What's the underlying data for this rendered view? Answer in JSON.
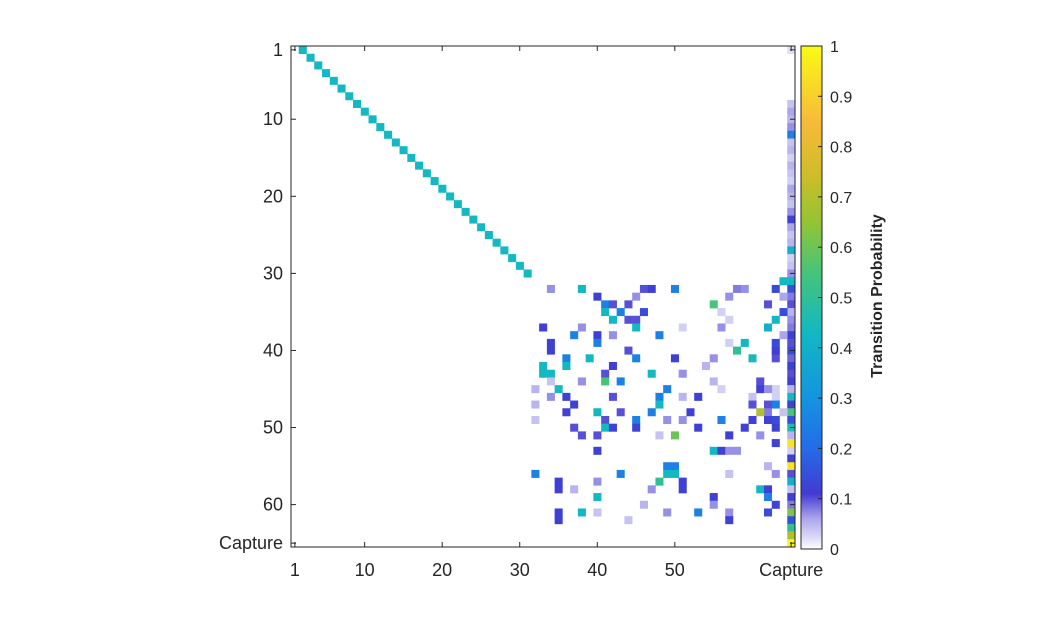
{
  "chart_data": {
    "type": "heatmap",
    "title": "",
    "n_states": 65,
    "x_tick_labels": [
      "1",
      "10",
      "20",
      "30",
      "40",
      "50",
      "Capture"
    ],
    "x_tick_positions": [
      1,
      10,
      20,
      30,
      40,
      50,
      65
    ],
    "y_tick_labels": [
      "1",
      "10",
      "20",
      "30",
      "40",
      "50",
      "60",
      "Capture"
    ],
    "y_tick_positions": [
      1,
      10,
      20,
      30,
      40,
      50,
      60,
      65
    ],
    "colorbar": {
      "label": "Transition Probability",
      "ticks": [
        "0",
        "0.1",
        "0.2",
        "0.3",
        "0.4",
        "0.5",
        "0.6",
        "0.7",
        "0.8",
        "0.9",
        "1"
      ],
      "range": [
        0,
        1
      ]
    },
    "cells": [
      [
        1,
        2,
        0.43
      ],
      [
        2,
        3,
        0.43
      ],
      [
        3,
        4,
        0.43
      ],
      [
        4,
        5,
        0.43
      ],
      [
        5,
        6,
        0.43
      ],
      [
        6,
        7,
        0.43
      ],
      [
        7,
        8,
        0.43
      ],
      [
        8,
        9,
        0.43
      ],
      [
        9,
        10,
        0.43
      ],
      [
        10,
        11,
        0.43
      ],
      [
        11,
        12,
        0.43
      ],
      [
        12,
        13,
        0.43
      ],
      [
        13,
        14,
        0.43
      ],
      [
        14,
        15,
        0.43
      ],
      [
        15,
        16,
        0.43
      ],
      [
        16,
        17,
        0.43
      ],
      [
        17,
        18,
        0.43
      ],
      [
        18,
        19,
        0.43
      ],
      [
        19,
        20,
        0.43
      ],
      [
        20,
        21,
        0.43
      ],
      [
        21,
        22,
        0.43
      ],
      [
        22,
        23,
        0.43
      ],
      [
        23,
        24,
        0.43
      ],
      [
        24,
        25,
        0.43
      ],
      [
        25,
        26,
        0.43
      ],
      [
        26,
        27,
        0.43
      ],
      [
        27,
        28,
        0.43
      ],
      [
        28,
        29,
        0.43
      ],
      [
        29,
        30,
        0.43
      ],
      [
        30,
        31,
        0.43
      ],
      [
        1,
        65,
        0.02
      ],
      [
        8,
        65,
        0.04
      ],
      [
        9,
        65,
        0.06
      ],
      [
        10,
        65,
        0.05
      ],
      [
        11,
        65,
        0.07
      ],
      [
        12,
        65,
        0.25
      ],
      [
        13,
        65,
        0.04
      ],
      [
        14,
        65,
        0.05
      ],
      [
        15,
        65,
        0.03
      ],
      [
        16,
        65,
        0.05
      ],
      [
        17,
        65,
        0.04
      ],
      [
        18,
        65,
        0.03
      ],
      [
        19,
        65,
        0.06
      ],
      [
        20,
        65,
        0.05
      ],
      [
        21,
        65,
        0.04
      ],
      [
        22,
        65,
        0.07
      ],
      [
        23,
        65,
        0.12
      ],
      [
        24,
        65,
        0.06
      ],
      [
        25,
        65,
        0.04
      ],
      [
        26,
        65,
        0.05
      ],
      [
        27,
        65,
        0.4
      ],
      [
        28,
        65,
        0.03
      ],
      [
        29,
        65,
        0.04
      ],
      [
        30,
        65,
        0.07
      ],
      [
        31,
        65,
        0.43
      ],
      [
        32,
        65,
        0.15
      ],
      [
        33,
        65,
        0.08
      ],
      [
        34,
        65,
        0.1
      ],
      [
        35,
        65,
        0.05
      ],
      [
        36,
        65,
        0.07
      ],
      [
        37,
        65,
        0.08
      ],
      [
        38,
        65,
        0.12
      ],
      [
        39,
        65,
        0.1
      ],
      [
        40,
        65,
        0.14
      ],
      [
        41,
        65,
        0.09
      ],
      [
        42,
        65,
        0.12
      ],
      [
        43,
        65,
        0.1
      ],
      [
        44,
        65,
        0.12
      ],
      [
        45,
        65,
        0.05
      ],
      [
        46,
        65,
        0.43
      ],
      [
        47,
        65,
        0.12
      ],
      [
        48,
        65,
        0.55
      ],
      [
        49,
        65,
        0.15
      ],
      [
        50,
        65,
        0.45
      ],
      [
        51,
        65,
        0.05
      ],
      [
        52,
        65,
        0.95
      ],
      [
        53,
        65,
        0.03
      ],
      [
        54,
        65,
        0.12
      ],
      [
        55,
        65,
        0.95
      ],
      [
        56,
        65,
        0.1
      ],
      [
        57,
        65,
        0.4
      ],
      [
        58,
        65,
        0.04
      ],
      [
        59,
        65,
        0.12
      ],
      [
        60,
        65,
        0.08
      ],
      [
        61,
        65,
        0.62
      ],
      [
        62,
        65,
        0.15
      ],
      [
        63,
        65,
        0.5
      ],
      [
        64,
        65,
        0.7
      ],
      [
        65,
        65,
        1.0
      ],
      [
        31,
        64,
        0.43
      ],
      [
        32,
        63,
        0.14
      ],
      [
        32,
        59,
        0.07
      ],
      [
        32,
        58,
        0.08
      ],
      [
        33,
        57,
        0.07
      ],
      [
        33,
        64,
        0.06
      ],
      [
        34,
        62,
        0.1
      ],
      [
        35,
        64,
        0.14
      ],
      [
        36,
        63,
        0.43
      ],
      [
        37,
        62,
        0.45
      ],
      [
        38,
        64,
        0.06
      ],
      [
        39,
        63,
        0.14
      ],
      [
        40,
        63,
        0.07
      ],
      [
        41,
        63,
        0.1
      ],
      [
        41,
        60,
        0.45
      ],
      [
        44,
        61,
        0.1
      ],
      [
        45,
        63,
        0.03
      ],
      [
        46,
        63,
        0.03
      ],
      [
        47,
        63,
        0.25
      ],
      [
        47,
        62,
        0.1
      ],
      [
        48,
        62,
        0.08
      ],
      [
        48,
        64,
        0.04
      ],
      [
        32,
        34,
        0.07
      ],
      [
        32,
        38,
        0.43
      ],
      [
        32,
        46,
        0.1
      ],
      [
        32,
        47,
        0.12
      ],
      [
        32,
        50,
        0.25
      ],
      [
        33,
        40,
        0.12
      ],
      [
        33,
        45,
        0.07
      ],
      [
        34,
        41,
        0.25
      ],
      [
        34,
        42,
        0.1
      ],
      [
        34,
        44,
        0.1
      ],
      [
        34,
        55,
        0.55
      ],
      [
        35,
        41,
        0.43
      ],
      [
        35,
        43,
        0.25
      ],
      [
        35,
        46,
        0.14
      ],
      [
        35,
        56,
        0.03
      ],
      [
        36,
        42,
        0.43
      ],
      [
        36,
        44,
        0.1
      ],
      [
        36,
        45,
        0.1
      ],
      [
        36,
        57,
        0.03
      ],
      [
        37,
        33,
        0.12
      ],
      [
        37,
        38,
        0.07
      ],
      [
        37,
        45,
        0.43
      ],
      [
        37,
        51,
        0.03
      ],
      [
        37,
        56,
        0.07
      ],
      [
        37,
        62,
        0.4
      ],
      [
        38,
        37,
        0.25
      ],
      [
        38,
        40,
        0.12
      ],
      [
        38,
        42,
        0.07
      ],
      [
        38,
        48,
        0.25
      ],
      [
        39,
        34,
        0.12
      ],
      [
        39,
        40,
        0.25
      ],
      [
        39,
        57,
        0.03
      ],
      [
        39,
        59,
        0.43
      ],
      [
        40,
        34,
        0.12
      ],
      [
        40,
        44,
        0.1
      ],
      [
        40,
        58,
        0.5
      ],
      [
        40,
        63,
        0.12
      ],
      [
        41,
        36,
        0.25
      ],
      [
        41,
        39,
        0.43
      ],
      [
        41,
        45,
        0.25
      ],
      [
        41,
        50,
        0.12
      ],
      [
        41,
        55,
        0.07
      ],
      [
        42,
        33,
        0.43
      ],
      [
        42,
        36,
        0.43
      ],
      [
        42,
        42,
        0.12
      ],
      [
        42,
        54,
        0.05
      ],
      [
        43,
        33,
        0.43
      ],
      [
        43,
        34,
        0.43
      ],
      [
        43,
        41,
        0.1
      ],
      [
        43,
        47,
        0.43
      ],
      [
        43,
        51,
        0.07
      ],
      [
        44,
        34,
        0.04
      ],
      [
        44,
        38,
        0.07
      ],
      [
        44,
        41,
        0.55
      ],
      [
        44,
        43,
        0.25
      ],
      [
        44,
        55,
        0.05
      ],
      [
        45,
        32,
        0.05
      ],
      [
        45,
        35,
        0.43
      ],
      [
        45,
        49,
        0.25
      ],
      [
        45,
        56,
        0.03
      ],
      [
        45,
        61,
        0.12
      ],
      [
        45,
        62,
        0.07
      ],
      [
        46,
        34,
        0.07
      ],
      [
        46,
        36,
        0.12
      ],
      [
        46,
        42,
        0.1
      ],
      [
        46,
        48,
        0.25
      ],
      [
        46,
        51,
        0.05
      ],
      [
        46,
        53,
        0.12
      ],
      [
        46,
        60,
        0.04
      ],
      [
        47,
        32,
        0.05
      ],
      [
        47,
        37,
        0.12
      ],
      [
        47,
        48,
        0.43
      ],
      [
        47,
        60,
        0.1
      ],
      [
        48,
        36,
        0.12
      ],
      [
        48,
        40,
        0.43
      ],
      [
        48,
        43,
        0.1
      ],
      [
        48,
        47,
        0.25
      ],
      [
        48,
        52,
        0.12
      ],
      [
        48,
        61,
        0.7
      ],
      [
        49,
        32,
        0.04
      ],
      [
        49,
        41,
        0.1
      ],
      [
        49,
        45,
        0.25
      ],
      [
        49,
        49,
        0.07
      ],
      [
        49,
        51,
        0.07
      ],
      [
        49,
        56,
        0.25
      ],
      [
        49,
        60,
        0.12
      ],
      [
        49,
        62,
        0.12
      ],
      [
        49,
        63,
        0.14
      ],
      [
        50,
        37,
        0.1
      ],
      [
        50,
        41,
        0.43
      ],
      [
        50,
        42,
        0.12
      ],
      [
        50,
        45,
        0.12
      ],
      [
        50,
        53,
        0.12
      ],
      [
        50,
        59,
        0.12
      ],
      [
        50,
        63,
        0.12
      ],
      [
        51,
        38,
        0.1
      ],
      [
        51,
        40,
        0.1
      ],
      [
        51,
        48,
        0.04
      ],
      [
        51,
        50,
        0.6
      ],
      [
        51,
        57,
        0.12
      ],
      [
        51,
        61,
        0.07
      ],
      [
        52,
        63,
        0.12
      ],
      [
        53,
        40,
        0.12
      ],
      [
        53,
        55,
        0.43
      ],
      [
        53,
        56,
        0.12
      ],
      [
        53,
        57,
        0.07
      ],
      [
        53,
        58,
        0.07
      ],
      [
        55,
        49,
        0.25
      ],
      [
        55,
        50,
        0.25
      ],
      [
        55,
        62,
        0.05
      ],
      [
        56,
        32,
        0.25
      ],
      [
        56,
        43,
        0.25
      ],
      [
        56,
        49,
        0.43
      ],
      [
        56,
        50,
        0.43
      ],
      [
        56,
        57,
        0.04
      ],
      [
        56,
        63,
        0.07
      ],
      [
        57,
        35,
        0.12
      ],
      [
        57,
        40,
        0.07
      ],
      [
        57,
        48,
        0.5
      ],
      [
        57,
        51,
        0.12
      ],
      [
        58,
        35,
        0.12
      ],
      [
        58,
        37,
        0.05
      ],
      [
        58,
        47,
        0.07
      ],
      [
        58,
        51,
        0.12
      ],
      [
        58,
        61,
        0.43
      ],
      [
        58,
        62,
        0.12
      ],
      [
        59,
        40,
        0.43
      ],
      [
        59,
        55,
        0.12
      ],
      [
        59,
        62,
        0.25
      ],
      [
        60,
        46,
        0.05
      ],
      [
        60,
        55,
        0.07
      ],
      [
        60,
        63,
        0.12
      ],
      [
        61,
        35,
        0.12
      ],
      [
        61,
        38,
        0.43
      ],
      [
        61,
        40,
        0.04
      ],
      [
        61,
        49,
        0.07
      ],
      [
        61,
        53,
        0.25
      ],
      [
        61,
        57,
        0.07
      ],
      [
        61,
        62,
        0.14
      ],
      [
        62,
        35,
        0.12
      ],
      [
        62,
        44,
        0.04
      ],
      [
        62,
        57,
        0.12
      ]
    ]
  }
}
